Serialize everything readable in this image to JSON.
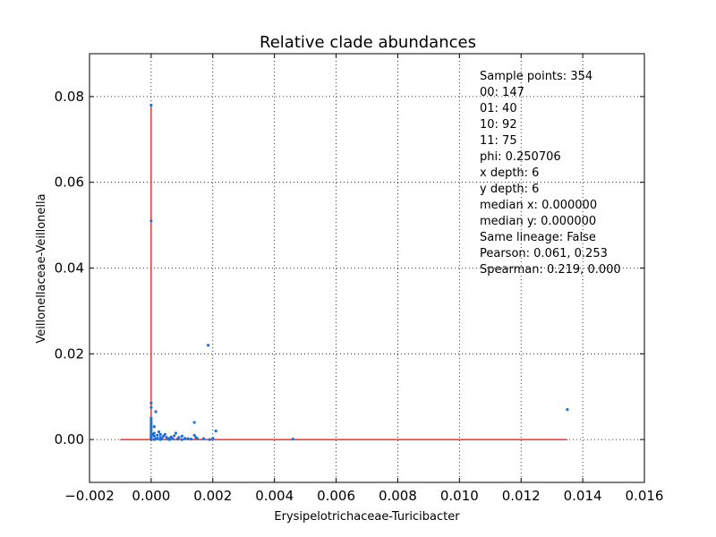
{
  "chart_data": {
    "type": "scatter",
    "title": "Relative clade abundances",
    "xlabel": "Erysipelotrichaceae-Turicibacter",
    "ylabel": "Veillonellaceae-Veillonella",
    "xlim": [
      -0.002,
      0.016
    ],
    "ylim": [
      -0.01,
      0.09
    ],
    "xticks": [
      "−0.002",
      "0.000",
      "0.002",
      "0.004",
      "0.006",
      "0.008",
      "0.010",
      "0.012",
      "0.014",
      "0.016"
    ],
    "yticks": [
      "0.00",
      "0.02",
      "0.04",
      "0.06",
      "0.08"
    ],
    "grid": true,
    "point_color": "#1f6fd6",
    "line_color": "#ff0000",
    "stats": [
      "Sample points: 354",
      "00: 147",
      "01: 40",
      "10: 92",
      "11: 75",
      "phi: 0.250706",
      "x depth: 6",
      "y depth: 6",
      "median x: 0.000000",
      "median y: 0.000000",
      "Same lineage: False",
      "Pearson: 0.061, 0.253",
      "Spearman: 0.219, 0.000"
    ],
    "points": [
      [
        0.0,
        0.078
      ],
      [
        0.0,
        0.051
      ],
      [
        0.00185,
        0.022
      ],
      [
        0.0135,
        0.007
      ],
      [
        0.0,
        0.0085
      ],
      [
        0.0,
        0.0075
      ],
      [
        0.00015,
        0.0065
      ],
      [
        0.0014,
        0.004
      ],
      [
        0.0001,
        0.003
      ],
      [
        0.0021,
        0.002
      ],
      [
        0.0,
        0.005
      ],
      [
        0.0,
        0.0045
      ],
      [
        0.0,
        0.004
      ],
      [
        0.0,
        0.0035
      ],
      [
        0.0,
        0.003
      ],
      [
        0.0,
        0.0025
      ],
      [
        0.0,
        0.002
      ],
      [
        0.0,
        0.0015
      ],
      [
        0.0,
        0.001
      ],
      [
        0.0,
        0.0005
      ],
      [
        0.0001,
        0.0015
      ],
      [
        0.0002,
        0.001
      ],
      [
        0.0003,
        0.0012
      ],
      [
        0.0004,
        0.0008
      ],
      [
        0.0005,
        0.0005
      ],
      [
        0.0003,
        0.0005
      ],
      [
        0.0002,
        0.0003
      ],
      [
        0.0001,
        0.0008
      ],
      [
        0.0006,
        0.0003
      ],
      [
        0.0007,
        0.0002
      ],
      [
        0.0008,
        0.0015
      ],
      [
        0.0009,
        0.0005
      ],
      [
        0.0011,
        0.0003
      ],
      [
        0.0012,
        0.0002
      ],
      [
        0.0014,
        0.001
      ],
      [
        0.00145,
        0.0005
      ],
      [
        0.0015,
        0.0002
      ],
      [
        0.0017,
        0.0002
      ],
      [
        0.002,
        0.0003
      ],
      [
        0.0046,
        0.0001
      ],
      [
        0.00025,
        0.0018
      ],
      [
        0.00035,
        0.0003
      ],
      [
        0.00045,
        0.0012
      ],
      [
        0.00055,
        0.0001
      ],
      [
        0.00065,
        0.0006
      ],
      [
        0.00015,
        0.0002
      ],
      [
        5e-05,
        0.0012
      ],
      [
        0.00075,
        0.0009
      ],
      [
        0.00085,
        0.0001
      ],
      [
        0.001,
        0.0008
      ],
      [
        0.0013,
        0.0001
      ],
      [
        0.0,
        0.0
      ],
      [
        0.0001,
        0.0
      ],
      [
        0.0003,
        0.0
      ],
      [
        0.0006,
        0.0
      ],
      [
        0.001,
        0.0
      ],
      [
        0.0019,
        0.0
      ],
      [
        0.0,
        0.0002
      ],
      [
        0.0,
        0.0006
      ],
      [
        0.0,
        0.0012
      ]
    ],
    "median_lines": [
      {
        "orientation": "horizontal",
        "y": 0.0,
        "x_from": -0.001,
        "x_to": 0.0135
      },
      {
        "orientation": "vertical",
        "x": 0.0,
        "y_from": 0.0,
        "y_to": 0.078
      }
    ]
  }
}
